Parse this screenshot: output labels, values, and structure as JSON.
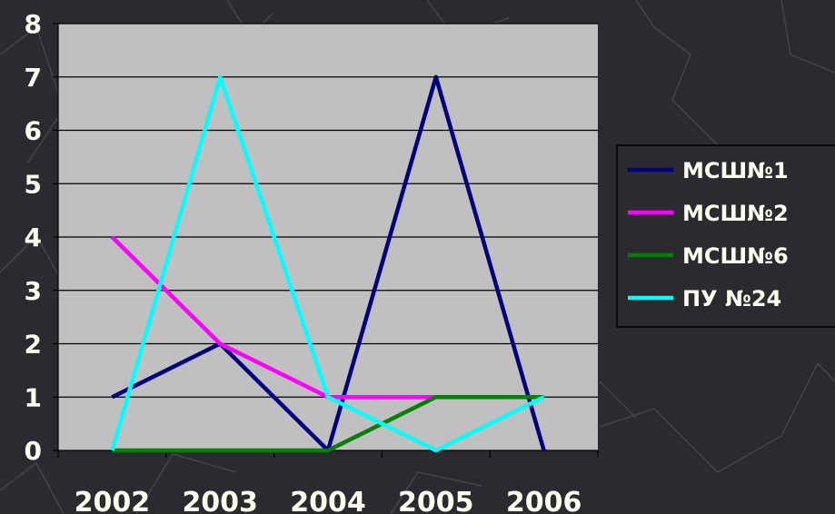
{
  "colors": {
    "background": "#2a2b30",
    "plot_area": "#c0c0c0",
    "axis": "#000000",
    "gridline": "#000000",
    "label_text": "#fffff0",
    "legend_bg": "#2a2b30"
  },
  "chart_data": {
    "type": "line",
    "categories": [
      "2002",
      "2003",
      "2004",
      "2005",
      "2006"
    ],
    "y_ticks": [
      "0",
      "1",
      "2",
      "3",
      "4",
      "5",
      "6",
      "7",
      "8"
    ],
    "ylim": [
      0,
      8
    ],
    "grid": true,
    "legend_position": "right",
    "series": [
      {
        "name": "МСШ№1",
        "color": "#000080",
        "values": [
          1,
          2,
          0,
          7,
          0
        ]
      },
      {
        "name": "МСШ№2",
        "color": "#ff00ff",
        "values": [
          4,
          2,
          1,
          1,
          null
        ]
      },
      {
        "name": "МСШ№6",
        "color": "#008000",
        "values": [
          0,
          0,
          0,
          1,
          1
        ]
      },
      {
        "name": "ПУ №24",
        "color": "#00ffff",
        "values": [
          0,
          7,
          1,
          0,
          1
        ]
      }
    ]
  }
}
